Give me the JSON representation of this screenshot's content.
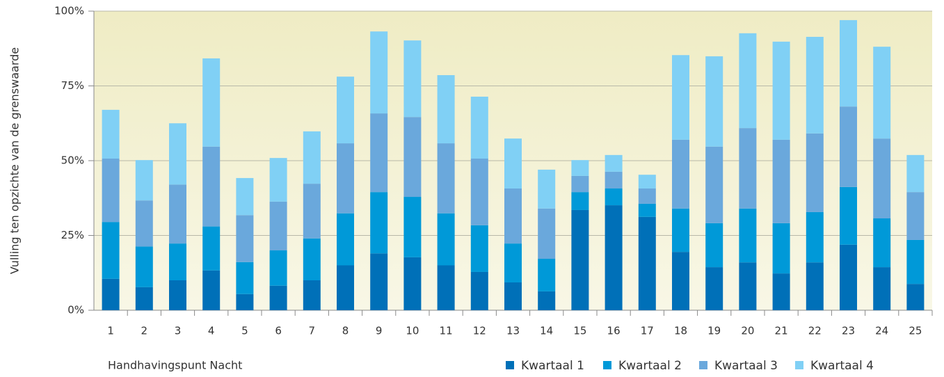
{
  "chart_data": {
    "type": "stacked_bar",
    "y_label": "Vulling ten opzichte van de grenswaarde",
    "x_label": "Handhavingspunt Nacht",
    "categories": [
      "1",
      "2",
      "3",
      "4",
      "5",
      "6",
      "7",
      "8",
      "9",
      "10",
      "11",
      "12",
      "13",
      "14",
      "15",
      "16",
      "17",
      "18",
      "19",
      "20",
      "21",
      "22",
      "23",
      "24",
      "25"
    ],
    "series": [
      {
        "name": "Kwartaal 1",
        "color": "#0070b8",
        "values": [
          10.5,
          7.7,
          10,
          13.3,
          5.4,
          8.2,
          10,
          15,
          19,
          17.7,
          15,
          12.8,
          9.3,
          6.3,
          33.5,
          35.1,
          31.2,
          19.5,
          14.4,
          16,
          12.3,
          16,
          21.9,
          14.4,
          8.8
        ]
      },
      {
        "name": "Kwartaal 2",
        "color": "#0099d8",
        "values": [
          19,
          13.6,
          12.3,
          14.7,
          10.7,
          11.8,
          14,
          17.4,
          20.5,
          20.2,
          17.4,
          15.6,
          13,
          10.9,
          6,
          5.6,
          4.4,
          14.5,
          14.7,
          18,
          16.8,
          16.8,
          19.3,
          16.3,
          14.7
        ]
      },
      {
        "name": "Kwartaal 3",
        "color": "#6aa8dc",
        "values": [
          21.2,
          15.4,
          19.7,
          26.7,
          15.7,
          16.3,
          18.3,
          23.4,
          26.3,
          26.7,
          23.4,
          22.3,
          18.4,
          16.8,
          5.4,
          5.6,
          5.1,
          23,
          25.6,
          26.9,
          27.9,
          26.3,
          26.9,
          26.7,
          16
        ]
      },
      {
        "name": "Kwartaal 4",
        "color": "#80d0f5",
        "values": [
          16.3,
          13.5,
          20.5,
          29.5,
          12.4,
          14.6,
          17.5,
          22.3,
          27.4,
          25.6,
          22.8,
          20.7,
          16.7,
          13,
          5.3,
          5.6,
          4.6,
          28.3,
          30.2,
          31.7,
          32.8,
          32.3,
          28.9,
          30.7,
          12.4
        ]
      }
    ],
    "ylim": [
      0,
      100
    ],
    "yticks": [
      {
        "value": 0,
        "label": "0%"
      },
      {
        "value": 25,
        "label": "25%"
      },
      {
        "value": 50,
        "label": "50%"
      },
      {
        "value": 75,
        "label": "75%"
      },
      {
        "value": 100,
        "label": "100%"
      }
    ],
    "grid": true,
    "legend": "bottom-right"
  }
}
